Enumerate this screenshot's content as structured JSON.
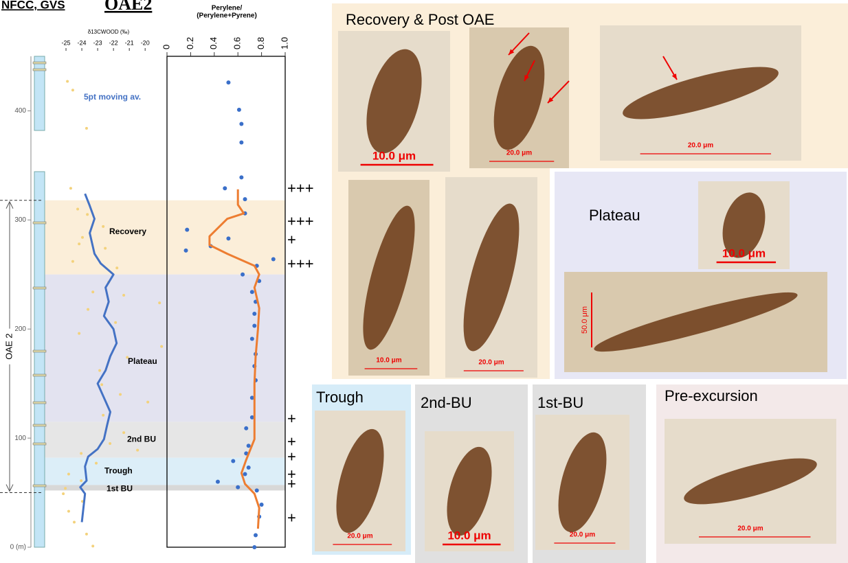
{
  "header": {
    "site": "NFCC, GVS",
    "event": "OAE2"
  },
  "oae2": {
    "label": "OAE 2",
    "from": 50,
    "to": 318
  },
  "chart_data": [
    {
      "type": "scatter-line",
      "x_label": "δ13CWOOD (‰)",
      "xlim": [
        -26,
        -18.75
      ],
      "xticks": [
        -25,
        -24,
        -23,
        -22,
        -21,
        -20
      ],
      "ylim": [
        0,
        450
      ],
      "yticks": [
        {
          "value": 0,
          "label": "0 (m)"
        },
        100,
        200,
        300,
        400
      ],
      "series": [
        {
          "kind": "scatter",
          "color": "#f3d27c",
          "x": [
            -24.91,
            -24.57,
            -23.7,
            -24.7,
            -24.26,
            -23.65,
            -22.65,
            -23.96,
            -24.17,
            -22.52,
            -24.57,
            -21.78,
            -22.3,
            -23.3,
            -21.35,
            -19.09,
            -23.61,
            -21.87,
            -24.17,
            -18.96,
            -21.13,
            -22.87,
            -22.74,
            -21.57,
            -19.83,
            -22.65,
            -21.35,
            -22.22,
            -24.04,
            -20.48,
            -23.09,
            -24.83,
            -24.04,
            -25.04,
            -25.17,
            -23.96,
            -24.83,
            -24.48,
            -23.7,
            -23.3
          ],
          "y": [
            427,
            419,
            384,
            329,
            310,
            305,
            294,
            284,
            278,
            274,
            262,
            256,
            243,
            234,
            231,
            224,
            218,
            206,
            196,
            184,
            174,
            162,
            149,
            140,
            133,
            121,
            105,
            95,
            86,
            89,
            77,
            67,
            61,
            54,
            49,
            42,
            33,
            23,
            12,
            1
          ]
        },
        {
          "name": "5pt moving av.",
          "kind": "line",
          "color": "#4472c4",
          "x": [
            -23.8,
            -23.5,
            -23.2,
            -23.5,
            -23.2,
            -22.8,
            -22.0,
            -22.5,
            -22.3,
            -22.6,
            -22.0,
            -21.8,
            -22.2,
            -22.5,
            -23.0,
            -22.6,
            -22.2,
            -22.4,
            -22.6,
            -23.0,
            -23.6,
            -23.8,
            -23.7,
            -24.1,
            -23.8,
            -23.9,
            -24.0
          ],
          "y": [
            324,
            313,
            301,
            288,
            269,
            260,
            250,
            238,
            225,
            212,
            200,
            187,
            175,
            162,
            150,
            137,
            124,
            112,
            99,
            90,
            83,
            74,
            61,
            55,
            49,
            36,
            23
          ]
        }
      ]
    },
    {
      "type": "scatter-line",
      "x_label": [
        "Perylene/",
        "(Perylene+Pyrene)"
      ],
      "xlim": [
        0,
        1
      ],
      "xticks": [
        0,
        0.2,
        0.4,
        0.6,
        0.8,
        {
          "value": 1,
          "label": "1.0"
        }
      ],
      "ylim": [
        0,
        450
      ],
      "series": [
        {
          "kind": "scatter",
          "color": "#3a6fc9",
          "x": [
            0.52,
            0.61,
            0.63,
            0.63,
            0.63,
            0.49,
            0.66,
            0.66,
            0.17,
            0.52,
            0.37,
            0.16,
            0.9,
            0.76,
            0.64,
            0.78,
            0.72,
            0.75,
            0.74,
            0.74,
            0.72,
            0.75,
            0.74,
            0.75,
            0.72,
            0.72,
            0.67,
            0.69,
            0.67,
            0.56,
            0.69,
            0.66,
            0.43,
            0.6,
            0.76,
            0.8,
            0.78,
            0.75,
            0.74
          ],
          "y": [
            426,
            401,
            388,
            371,
            339,
            329,
            319,
            306,
            291,
            283,
            276,
            272,
            264,
            258,
            250,
            244,
            234,
            225,
            214,
            203,
            191,
            177,
            166,
            153,
            137,
            119,
            109,
            93,
            86,
            79,
            73,
            67,
            60,
            55,
            52,
            39,
            28,
            11,
            0
          ]
        },
        {
          "kind": "line",
          "color": "#ed7d31",
          "x": [
            0.6,
            0.6,
            0.65,
            0.51,
            0.36,
            0.36,
            0.51,
            0.74,
            0.78,
            0.74,
            0.78,
            0.77,
            0.75,
            0.74,
            0.74,
            0.74,
            0.67,
            0.63,
            0.66,
            0.74,
            0.78,
            0.77
          ],
          "y": [
            328,
            314,
            306,
            301,
            285,
            277,
            269,
            258,
            250,
            238,
            219,
            200,
            175,
            150,
            124,
            99,
            80,
            68,
            58,
            49,
            36,
            17
          ]
        }
      ]
    }
  ],
  "zones": [
    {
      "label": "Recovery",
      "from": 250,
      "to": 318,
      "color": "#fbeed9"
    },
    {
      "label": "Plateau",
      "from": 115,
      "to": 250,
      "color": "#e3e3f0"
    },
    {
      "label": "2nd BU",
      "from": 82,
      "to": 115,
      "color": "#e6e6e6"
    },
    {
      "label": "Trough",
      "from": 57,
      "to": 82,
      "color": "#dceef8"
    },
    {
      "label": "1st BU",
      "from": 52,
      "to": 57,
      "color": "#d8d8d8"
    }
  ],
  "markers": [
    {
      "text": "+++",
      "depth": 328
    },
    {
      "text": "+++",
      "depth": 298
    },
    {
      "text": "+",
      "depth": 281
    },
    {
      "text": "+++",
      "depth": 259
    },
    {
      "text": "+",
      "depth": 117
    },
    {
      "text": "+",
      "depth": 96
    },
    {
      "text": "+",
      "depth": 82
    },
    {
      "text": "+",
      "depth": 66
    },
    {
      "text": "+",
      "depth": 57
    },
    {
      "text": "+",
      "depth": 26
    }
  ],
  "panels": [
    {
      "title": "Recovery & Post OAE",
      "scales": [
        "10.0 μm",
        "20.0 μm",
        "20.0 μm",
        "10.0 μm",
        "20.0 μm"
      ]
    },
    {
      "title": "Plateau",
      "scales": [
        "10.0 μm",
        "50.0 μm"
      ]
    },
    {
      "title": "Trough",
      "scales": [
        "20.0 μm"
      ]
    },
    {
      "title": "2nd-BU",
      "scales": [
        "10.0 μm"
      ]
    },
    {
      "title": "1st-BU",
      "scales": [
        "20.0 μm"
      ]
    },
    {
      "title": "Pre-excursion",
      "scales": [
        "20.0 μm"
      ]
    }
  ]
}
